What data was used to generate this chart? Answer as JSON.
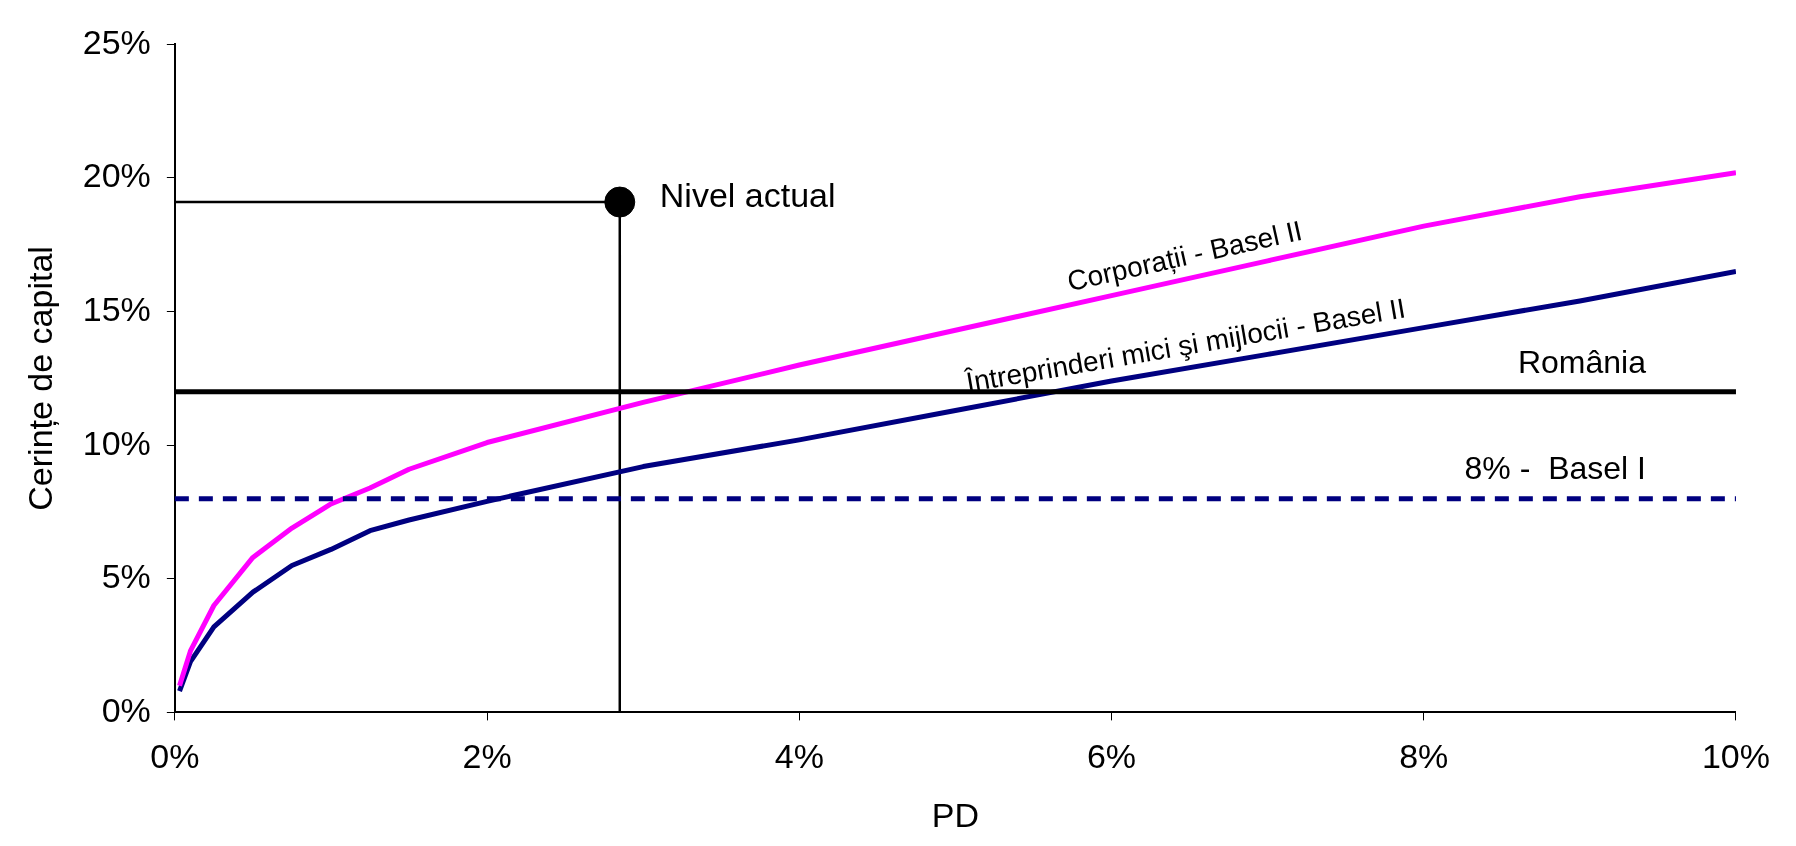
{
  "chart_data": {
    "type": "line",
    "xlabel": "PD",
    "ylabel": "Cerințe de capital",
    "xlim": [
      0,
      10
    ],
    "ylim": [
      0,
      25
    ],
    "xticks": [
      {
        "value": 0,
        "label": "0%"
      },
      {
        "value": 2,
        "label": "2%"
      },
      {
        "value": 4,
        "label": "4%"
      },
      {
        "value": 6,
        "label": "6%"
      },
      {
        "value": 8,
        "label": "8%"
      },
      {
        "value": 10,
        "label": "10%"
      }
    ],
    "yticks": [
      {
        "value": 0,
        "label": "0%"
      },
      {
        "value": 5,
        "label": "5%"
      },
      {
        "value": 10,
        "label": "10%"
      },
      {
        "value": 15,
        "label": "15%"
      },
      {
        "value": 20,
        "label": "20%"
      },
      {
        "value": 25,
        "label": "25%"
      }
    ],
    "grid": false,
    "legend": false,
    "marker": "none",
    "line_style": "solid",
    "series": [
      {
        "name": "Corporații - Basel II",
        "color": "#ff00ff",
        "x": [
          0.03,
          0.1,
          0.25,
          0.5,
          0.75,
          1,
          1.25,
          1.5,
          2,
          3,
          4,
          5,
          6,
          7,
          8,
          9,
          10
        ],
        "values": [
          1.0,
          2.3,
          4.0,
          5.8,
          6.9,
          7.8,
          8.4,
          9.1,
          10.1,
          11.6,
          13.0,
          14.3,
          15.6,
          16.9,
          18.2,
          19.3,
          20.2
        ]
      },
      {
        "name": "Întreprinderi mici şi mijlocii - Basel II",
        "color": "#000080",
        "x": [
          0.03,
          0.1,
          0.25,
          0.5,
          0.75,
          1,
          1.25,
          1.5,
          2,
          3,
          4,
          5,
          6,
          7,
          8,
          9,
          10
        ],
        "values": [
          0.8,
          1.9,
          3.2,
          4.5,
          5.5,
          6.1,
          6.8,
          7.2,
          7.9,
          9.2,
          10.2,
          11.3,
          12.4,
          13.4,
          14.4,
          15.4,
          16.5
        ]
      },
      {
        "type": "line",
        "color": "#000000",
        "x": [
          0,
          2.85,
          2.85
        ],
        "values": [
          19.1,
          19.1,
          0
        ]
      },
      {
        "type": "scatter",
        "color": "#000000",
        "marker": "circle",
        "x": [
          2.85
        ],
        "values": [
          19.1
        ]
      }
    ],
    "ref_lines": [
      {
        "axis": "y",
        "value": 12,
        "label": "România",
        "color": "#000000",
        "line_style": "solid"
      },
      {
        "axis": "y",
        "value": 8,
        "label": "8% -  Basel I",
        "color": "#000080",
        "line_style": "dashed"
      }
    ],
    "annotations": [
      {
        "text": "Nivel actual",
        "x": 2.85,
        "y": 19.1
      }
    ]
  }
}
